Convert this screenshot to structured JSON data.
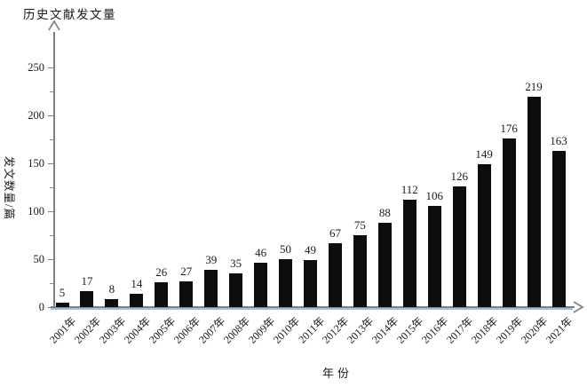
{
  "chart_data": {
    "type": "bar",
    "title": "历史文献发文量",
    "xlabel": "年份",
    "ylabel": "发文数量/篇",
    "categories": [
      "2001年",
      "2002年",
      "2003年",
      "2004年",
      "2005年",
      "2006年",
      "2007年",
      "2008年",
      "2009年",
      "2010年",
      "2011年",
      "2012年",
      "2013年",
      "2014年",
      "2015年",
      "2016年",
      "2017年",
      "2018年",
      "2019年",
      "2020年",
      "2021年"
    ],
    "values": [
      5,
      17,
      8,
      14,
      26,
      27,
      39,
      35,
      46,
      50,
      49,
      67,
      75,
      88,
      112,
      106,
      126,
      149,
      176,
      219,
      163
    ],
    "ylim": [
      0,
      250
    ],
    "y_ticks": [
      0,
      50,
      100,
      150,
      200,
      250
    ],
    "y_minor_ticks": [
      25,
      75,
      125,
      175,
      225
    ],
    "grid": false,
    "legend_position": "none",
    "data_labels": true,
    "colors": {
      "bar": "#0d0d0d",
      "axis": "#7f7f7f",
      "baseline_accent": "#9fc0e0",
      "text": "#1a1a1a"
    }
  }
}
